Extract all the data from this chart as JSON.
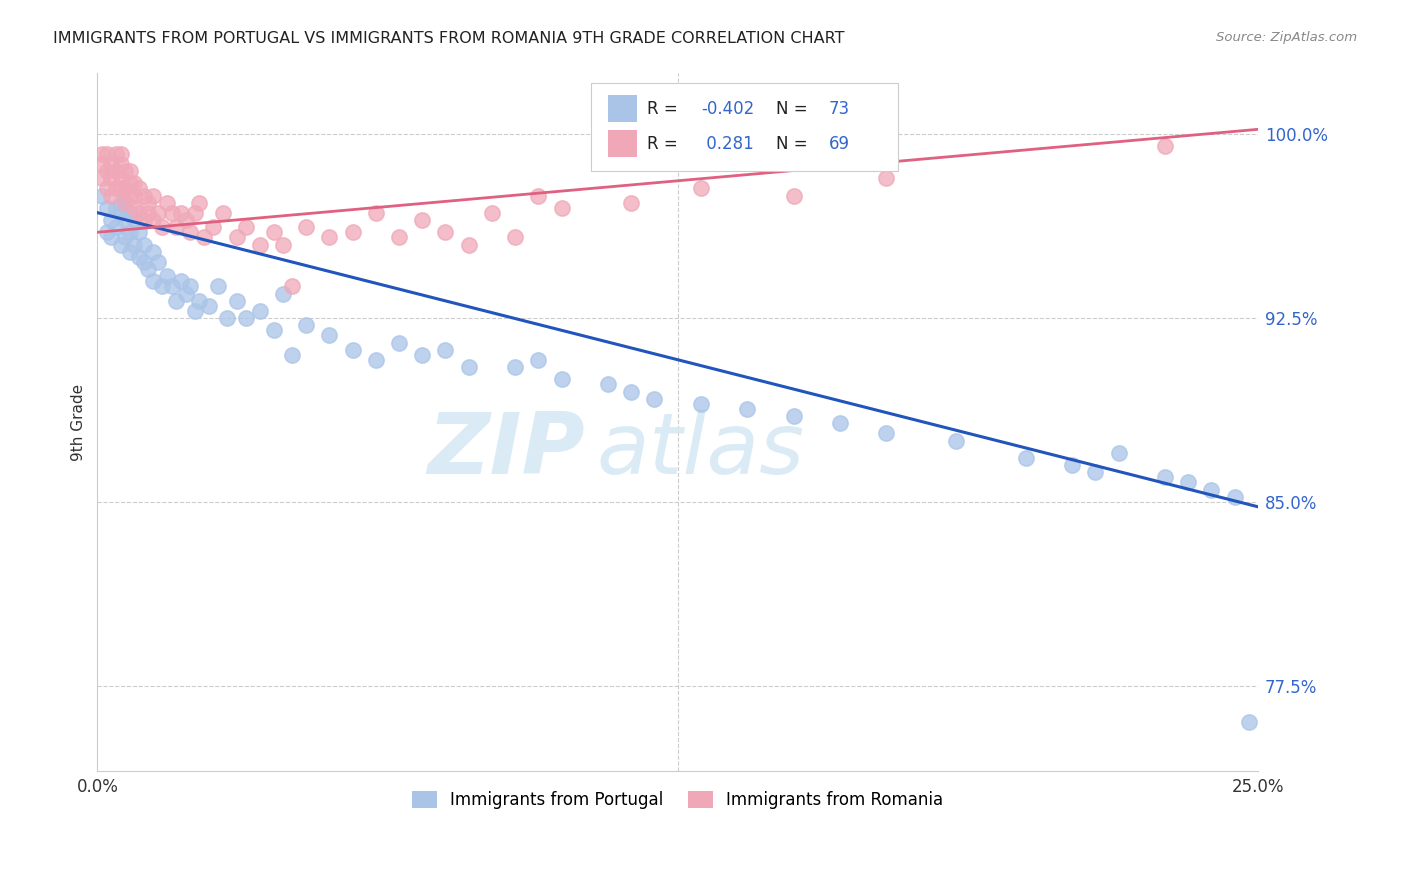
{
  "title": "IMMIGRANTS FROM PORTUGAL VS IMMIGRANTS FROM ROMANIA 9TH GRADE CORRELATION CHART",
  "source": "Source: ZipAtlas.com",
  "ylabel": "9th Grade",
  "xlim": [
    0.0,
    0.25
  ],
  "ylim": [
    0.74,
    1.025
  ],
  "xticks": [
    0.0,
    0.05,
    0.1,
    0.15,
    0.2,
    0.25
  ],
  "xticklabels": [
    "0.0%",
    "",
    "",
    "",
    "",
    "25.0%"
  ],
  "yticks": [
    0.775,
    0.85,
    0.925,
    1.0
  ],
  "yticklabels": [
    "77.5%",
    "85.0%",
    "92.5%",
    "100.0%"
  ],
  "portugal_color": "#aac4e8",
  "romania_color": "#f0a8b8",
  "portugal_line_color": "#2255bb",
  "romania_line_color": "#e06080",
  "background_color": "#ffffff",
  "grid_color": "#cccccc",
  "title_color": "#222222",
  "watermark_color": "#d5e8f5",
  "right_tick_color": "#3366cc",
  "legend_box_color": "#f8f8f8",
  "portugal_x": [
    0.001,
    0.002,
    0.002,
    0.003,
    0.003,
    0.004,
    0.004,
    0.005,
    0.005,
    0.005,
    0.006,
    0.006,
    0.006,
    0.007,
    0.007,
    0.007,
    0.008,
    0.008,
    0.009,
    0.009,
    0.01,
    0.01,
    0.011,
    0.012,
    0.012,
    0.013,
    0.014,
    0.015,
    0.016,
    0.017,
    0.018,
    0.019,
    0.02,
    0.021,
    0.022,
    0.024,
    0.026,
    0.028,
    0.03,
    0.032,
    0.035,
    0.038,
    0.04,
    0.042,
    0.045,
    0.05,
    0.055,
    0.06,
    0.065,
    0.07,
    0.075,
    0.08,
    0.09,
    0.095,
    0.1,
    0.11,
    0.115,
    0.12,
    0.13,
    0.14,
    0.15,
    0.16,
    0.17,
    0.185,
    0.2,
    0.21,
    0.215,
    0.22,
    0.23,
    0.235,
    0.24,
    0.245,
    0.248
  ],
  "portugal_y": [
    0.975,
    0.96,
    0.97,
    0.965,
    0.958,
    0.97,
    0.962,
    0.968,
    0.955,
    0.972,
    0.958,
    0.965,
    0.972,
    0.952,
    0.96,
    0.968,
    0.955,
    0.965,
    0.95,
    0.96,
    0.955,
    0.948,
    0.945,
    0.952,
    0.94,
    0.948,
    0.938,
    0.942,
    0.938,
    0.932,
    0.94,
    0.935,
    0.938,
    0.928,
    0.932,
    0.93,
    0.938,
    0.925,
    0.932,
    0.925,
    0.928,
    0.92,
    0.935,
    0.91,
    0.922,
    0.918,
    0.912,
    0.908,
    0.915,
    0.91,
    0.912,
    0.905,
    0.905,
    0.908,
    0.9,
    0.898,
    0.895,
    0.892,
    0.89,
    0.888,
    0.885,
    0.882,
    0.878,
    0.875,
    0.868,
    0.865,
    0.862,
    0.87,
    0.86,
    0.858,
    0.855,
    0.852,
    0.76
  ],
  "romania_x": [
    0.001,
    0.001,
    0.001,
    0.002,
    0.002,
    0.002,
    0.003,
    0.003,
    0.003,
    0.004,
    0.004,
    0.004,
    0.005,
    0.005,
    0.005,
    0.005,
    0.006,
    0.006,
    0.006,
    0.007,
    0.007,
    0.007,
    0.008,
    0.008,
    0.008,
    0.009,
    0.009,
    0.01,
    0.01,
    0.011,
    0.011,
    0.012,
    0.012,
    0.013,
    0.014,
    0.015,
    0.016,
    0.017,
    0.018,
    0.019,
    0.02,
    0.021,
    0.022,
    0.023,
    0.025,
    0.027,
    0.03,
    0.032,
    0.035,
    0.038,
    0.04,
    0.042,
    0.045,
    0.05,
    0.055,
    0.06,
    0.065,
    0.07,
    0.075,
    0.08,
    0.085,
    0.09,
    0.095,
    0.1,
    0.115,
    0.13,
    0.15,
    0.17,
    0.23
  ],
  "romania_y": [
    0.988,
    0.982,
    0.992,
    0.985,
    0.978,
    0.992,
    0.988,
    0.982,
    0.975,
    0.985,
    0.992,
    0.978,
    0.988,
    0.982,
    0.978,
    0.992,
    0.985,
    0.978,
    0.972,
    0.985,
    0.98,
    0.975,
    0.98,
    0.975,
    0.97,
    0.978,
    0.968,
    0.975,
    0.965,
    0.972,
    0.968,
    0.965,
    0.975,
    0.968,
    0.962,
    0.972,
    0.968,
    0.962,
    0.968,
    0.965,
    0.96,
    0.968,
    0.972,
    0.958,
    0.962,
    0.968,
    0.958,
    0.962,
    0.955,
    0.96,
    0.955,
    0.938,
    0.962,
    0.958,
    0.96,
    0.968,
    0.958,
    0.965,
    0.96,
    0.955,
    0.968,
    0.958,
    0.975,
    0.97,
    0.972,
    0.978,
    0.975,
    0.982,
    0.995
  ],
  "port_trend_x0": 0.0,
  "port_trend_y0": 0.968,
  "port_trend_x1": 0.25,
  "port_trend_y1": 0.848,
  "rom_trend_x0": 0.0,
  "rom_trend_y0": 0.96,
  "rom_trend_x1": 0.25,
  "rom_trend_y1": 1.002
}
